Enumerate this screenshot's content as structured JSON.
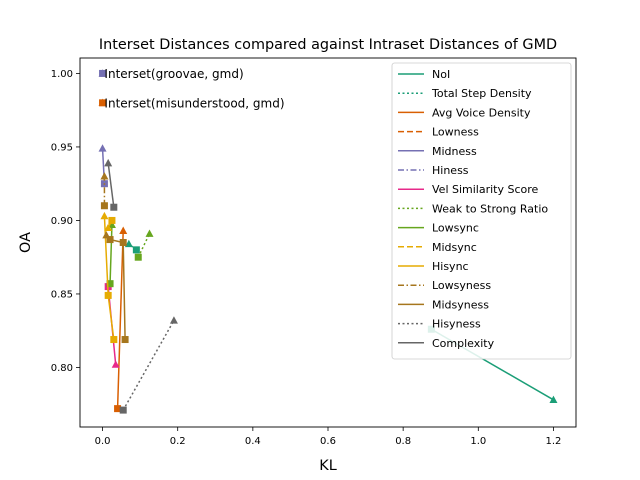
{
  "chart_data": {
    "type": "line",
    "title": "Interset Distances compared against Intraset Distances of GMD",
    "xlabel": "KL",
    "ylabel": "OA",
    "xlim": [
      -0.06,
      1.26
    ],
    "ylim": [
      0.7595,
      1.0105
    ],
    "xticks": [
      0.0,
      0.2,
      0.4,
      0.6,
      0.8,
      1.0,
      1.2
    ],
    "xtick_labels": [
      "0.0",
      "0.2",
      "0.4",
      "0.6",
      "0.8",
      "1.0",
      "1.2"
    ],
    "yticks": [
      0.8,
      0.85,
      0.9,
      0.95,
      1.0
    ],
    "ytick_labels": [
      "0.80",
      "0.85",
      "0.90",
      "0.95",
      "1.00"
    ],
    "grid": false,
    "legend_position": "top-right",
    "annotations": [
      {
        "text": "Interset(groovae, gmd)",
        "x": 0.005,
        "y": 1.0
      },
      {
        "text": "Interset(misunderstood, gmd)",
        "x": 0.005,
        "y": 0.98
      }
    ],
    "series": [
      {
        "name": "NoI",
        "color": "#1b9e77",
        "dash": "solid",
        "points": [
          {
            "x": 0.875,
            "y": 0.826
          },
          {
            "x": 1.2,
            "y": 0.778
          }
        ]
      },
      {
        "name": "Total Step Density",
        "color": "#1b9e77",
        "dash": "dotted",
        "points": [
          {
            "x": 0.09,
            "y": 0.88
          },
          {
            "x": 0.07,
            "y": 0.884
          }
        ]
      },
      {
        "name": "Avg Voice Density",
        "color": "#d95f02",
        "dash": "solid",
        "points": [
          {
            "x": 0.04,
            "y": 0.772
          },
          {
            "x": 0.055,
            "y": 0.893
          }
        ]
      },
      {
        "name": "Lowness",
        "color": "#d95f02",
        "dash": "dashed",
        "points": [
          {
            "x": 0.0,
            "y": 0.98
          },
          {
            "x": 0.0,
            "y": 0.98
          }
        ]
      },
      {
        "name": "Midness",
        "color": "#7570b3",
        "dash": "solid",
        "points": [
          {
            "x": 0.005,
            "y": 0.925
          },
          {
            "x": 0.0,
            "y": 0.949
          }
        ]
      },
      {
        "name": "Hiness",
        "color": "#7570b3",
        "dash": "dashdot",
        "points": [
          {
            "x": 0.0,
            "y": 1.0
          },
          {
            "x": 0.0,
            "y": 1.0
          }
        ]
      },
      {
        "name": "Vel Similarity Score",
        "color": "#e7298a",
        "dash": "solid",
        "points": [
          {
            "x": 0.015,
            "y": 0.855
          },
          {
            "x": 0.035,
            "y": 0.802
          }
        ]
      },
      {
        "name": "Weak to Strong Ratio",
        "color": "#66a61e",
        "dash": "dotted",
        "points": [
          {
            "x": 0.095,
            "y": 0.875
          },
          {
            "x": 0.125,
            "y": 0.891
          }
        ]
      },
      {
        "name": "Lowsync",
        "color": "#66a61e",
        "dash": "solid",
        "points": [
          {
            "x": 0.02,
            "y": 0.857
          },
          {
            "x": 0.025,
            "y": 0.897
          }
        ]
      },
      {
        "name": "Midsync",
        "color": "#e6ab02",
        "dash": "dashed",
        "points": [
          {
            "x": 0.025,
            "y": 0.9
          },
          {
            "x": 0.015,
            "y": 0.895
          }
        ]
      },
      {
        "name": "Hisync",
        "color": "#e6ab02",
        "dash": "solid",
        "points": [
          {
            "x": 0.03,
            "y": 0.819
          },
          {
            "x": 0.015,
            "y": 0.849
          },
          {
            "x": 0.005,
            "y": 0.903
          }
        ]
      },
      {
        "name": "Lowsyness",
        "color": "#a6761d",
        "dash": "dashdot",
        "points": [
          {
            "x": 0.005,
            "y": 0.91
          },
          {
            "x": 0.005,
            "y": 0.93
          }
        ]
      },
      {
        "name": "Midsyness",
        "color": "#a6761d",
        "dash": "solid",
        "points": [
          {
            "x": 0.06,
            "y": 0.819
          },
          {
            "x": 0.055,
            "y": 0.885
          },
          {
            "x": 0.02,
            "y": 0.887
          },
          {
            "x": 0.01,
            "y": 0.89
          }
        ]
      },
      {
        "name": "Hisyness",
        "color": "#666666",
        "dash": "dotted",
        "points": [
          {
            "x": 0.055,
            "y": 0.771
          },
          {
            "x": 0.19,
            "y": 0.832
          }
        ]
      },
      {
        "name": "Complexity",
        "color": "#666666",
        "dash": "solid",
        "points": [
          {
            "x": 0.03,
            "y": 0.909
          },
          {
            "x": 0.015,
            "y": 0.939
          }
        ]
      }
    ]
  }
}
